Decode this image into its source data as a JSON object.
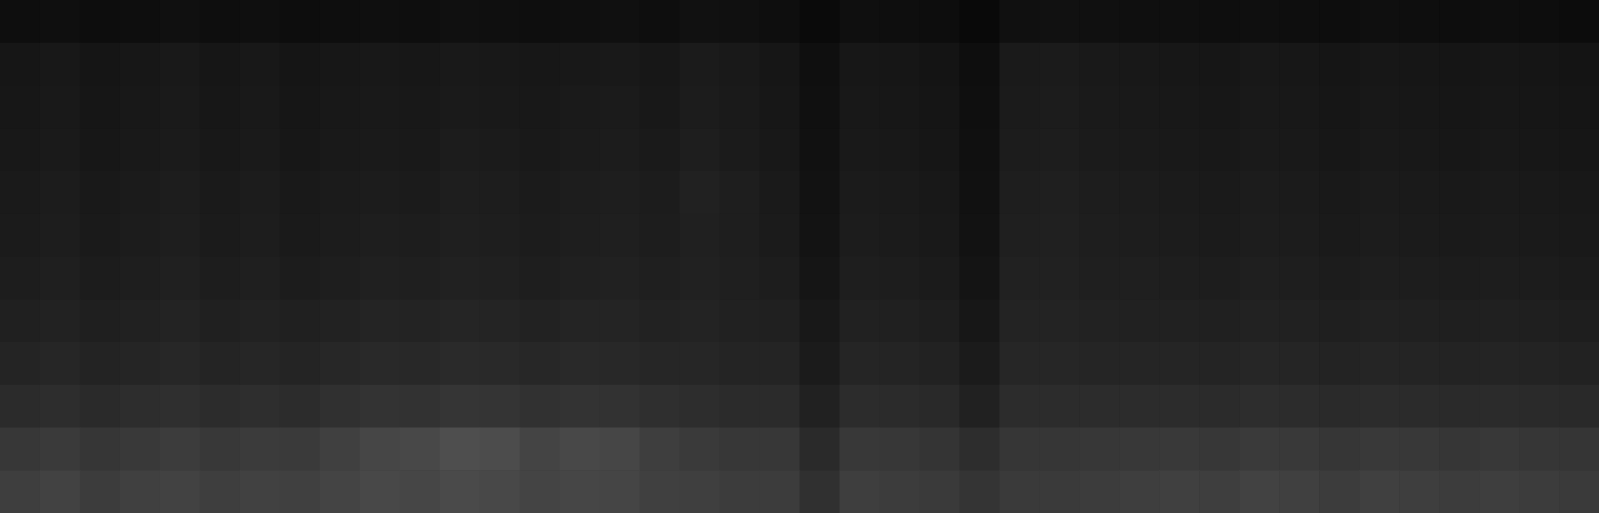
{
  "chart_data": {
    "type": "heatmap",
    "tick_labels": false,
    "cells": [
      [
        14,
        15,
        13,
        14,
        16,
        14,
        15,
        13,
        14,
        15,
        14,
        16,
        15,
        14,
        15,
        16,
        14,
        17,
        16,
        14,
        10,
        15,
        14,
        13,
        9,
        16,
        17,
        16,
        15,
        15,
        14,
        15,
        14,
        13,
        15,
        14,
        13,
        14,
        13,
        12
      ],
      [
        22,
        24,
        21,
        23,
        25,
        22,
        24,
        21,
        23,
        24,
        23,
        25,
        24,
        23,
        24,
        25,
        23,
        27,
        25,
        22,
        15,
        23,
        22,
        20,
        14,
        26,
        27,
        25,
        24,
        23,
        22,
        24,
        23,
        21,
        23,
        22,
        21,
        22,
        21,
        20
      ],
      [
        23,
        25,
        22,
        24,
        26,
        23,
        25,
        22,
        24,
        25,
        24,
        26,
        25,
        24,
        26,
        27,
        24,
        28,
        26,
        23,
        16,
        24,
        23,
        21,
        15,
        27,
        28,
        26,
        25,
        24,
        23,
        25,
        24,
        22,
        24,
        23,
        22,
        23,
        22,
        21
      ],
      [
        24,
        26,
        23,
        25,
        27,
        24,
        26,
        23,
        25,
        26,
        25,
        28,
        27,
        25,
        27,
        28,
        26,
        30,
        27,
        24,
        17,
        25,
        24,
        22,
        16,
        28,
        29,
        27,
        26,
        25,
        24,
        26,
        25,
        23,
        25,
        24,
        23,
        24,
        23,
        22
      ],
      [
        26,
        28,
        25,
        27,
        29,
        26,
        28,
        25,
        27,
        28,
        27,
        30,
        29,
        27,
        29,
        30,
        28,
        33,
        30,
        26,
        18,
        27,
        26,
        24,
        17,
        30,
        31,
        29,
        28,
        27,
        26,
        28,
        27,
        25,
        27,
        26,
        25,
        26,
        25,
        24
      ],
      [
        27,
        29,
        26,
        28,
        30,
        27,
        29,
        26,
        28,
        30,
        29,
        31,
        30,
        28,
        30,
        31,
        29,
        32,
        30,
        27,
        19,
        28,
        27,
        25,
        18,
        31,
        32,
        30,
        29,
        28,
        27,
        29,
        28,
        26,
        28,
        27,
        26,
        27,
        26,
        25
      ],
      [
        29,
        31,
        28,
        30,
        32,
        29,
        31,
        28,
        30,
        32,
        31,
        33,
        32,
        30,
        32,
        33,
        31,
        33,
        31,
        29,
        21,
        30,
        29,
        27,
        20,
        33,
        33,
        31,
        31,
        30,
        29,
        31,
        30,
        28,
        30,
        29,
        28,
        29,
        28,
        27
      ],
      [
        32,
        34,
        31,
        33,
        35,
        32,
        34,
        32,
        34,
        36,
        35,
        37,
        36,
        34,
        36,
        36,
        34,
        35,
        33,
        32,
        24,
        33,
        32,
        30,
        23,
        35,
        35,
        34,
        33,
        33,
        32,
        34,
        33,
        31,
        33,
        32,
        31,
        32,
        31,
        30
      ],
      [
        36,
        38,
        35,
        37,
        39,
        36,
        38,
        36,
        39,
        41,
        40,
        42,
        41,
        39,
        41,
        40,
        38,
        38,
        36,
        36,
        27,
        37,
        36,
        34,
        27,
        38,
        38,
        37,
        37,
        37,
        36,
        38,
        37,
        35,
        37,
        36,
        35,
        36,
        35,
        34
      ],
      [
        43,
        45,
        42,
        45,
        47,
        44,
        46,
        44,
        48,
        51,
        50,
        53,
        52,
        49,
        51,
        50,
        47,
        45,
        43,
        43,
        33,
        44,
        43,
        41,
        33,
        44,
        44,
        44,
        44,
        44,
        43,
        45,
        44,
        42,
        44,
        43,
        42,
        43,
        42,
        41
      ],
      [
        55,
        58,
        54,
        57,
        60,
        56,
        59,
        58,
        64,
        70,
        72,
        78,
        76,
        68,
        72,
        70,
        62,
        58,
        55,
        55,
        42,
        56,
        55,
        52,
        45,
        54,
        54,
        55,
        56,
        57,
        55,
        58,
        57,
        54,
        57,
        56,
        54,
        56,
        54,
        53
      ],
      [
        62,
        66,
        60,
        64,
        66,
        62,
        65,
        64,
        68,
        72,
        70,
        74,
        72,
        68,
        70,
        69,
        64,
        63,
        60,
        60,
        48,
        62,
        60,
        58,
        52,
        58,
        58,
        60,
        62,
        64,
        62,
        66,
        64,
        60,
        64,
        62,
        60,
        62,
        60,
        58
      ]
    ]
  }
}
